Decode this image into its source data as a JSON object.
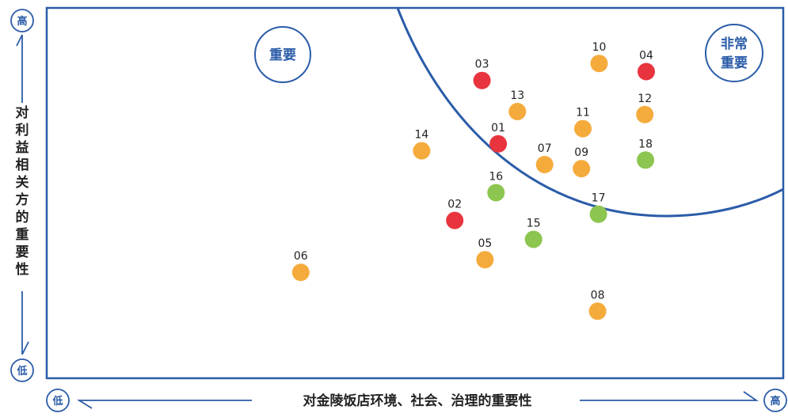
{
  "chart_data": {
    "type": "scatter",
    "xlabel": "对金陵饭店环境、社会、治理的重要性",
    "ylabel": "对利益相关方的重要性",
    "xlim": [
      0,
      100
    ],
    "ylim": [
      0,
      100
    ],
    "grid": false,
    "axis_low_label": "低",
    "axis_high_label": "高",
    "zones": [
      {
        "name": "important",
        "label": "重要"
      },
      {
        "name": "very-important",
        "label": "非常重要"
      }
    ],
    "colors": {
      "red": "#e8343e",
      "orange": "#f5ab3c",
      "green": "#8cc54f",
      "frame": "#2b5ca8"
    },
    "points": [
      {
        "label": "01",
        "x": 61.3,
        "y": 63.3,
        "color": "red"
      },
      {
        "label": "02",
        "x": 55.4,
        "y": 42.6,
        "color": "red"
      },
      {
        "label": "03",
        "x": 59.1,
        "y": 80.4,
        "color": "red"
      },
      {
        "label": "04",
        "x": 81.4,
        "y": 82.8,
        "color": "red"
      },
      {
        "label": "05",
        "x": 59.5,
        "y": 32.0,
        "color": "orange"
      },
      {
        "label": "06",
        "x": 34.5,
        "y": 28.6,
        "color": "orange"
      },
      {
        "label": "07",
        "x": 67.6,
        "y": 57.7,
        "color": "orange"
      },
      {
        "label": "08",
        "x": 74.8,
        "y": 18.1,
        "color": "orange"
      },
      {
        "label": "09",
        "x": 72.6,
        "y": 56.6,
        "color": "orange"
      },
      {
        "label": "10",
        "x": 75.0,
        "y": 85.0,
        "color": "orange"
      },
      {
        "label": "11",
        "x": 72.8,
        "y": 67.4,
        "color": "orange"
      },
      {
        "label": "12",
        "x": 81.2,
        "y": 71.2,
        "color": "orange"
      },
      {
        "label": "13",
        "x": 63.9,
        "y": 72.0,
        "color": "orange"
      },
      {
        "label": "14",
        "x": 50.9,
        "y": 61.4,
        "color": "orange"
      },
      {
        "label": "15",
        "x": 66.1,
        "y": 37.5,
        "color": "green"
      },
      {
        "label": "16",
        "x": 61.0,
        "y": 50.1,
        "color": "green"
      },
      {
        "label": "17",
        "x": 74.9,
        "y": 44.3,
        "color": "green"
      },
      {
        "label": "18",
        "x": 81.3,
        "y": 58.9,
        "color": "green"
      }
    ]
  }
}
